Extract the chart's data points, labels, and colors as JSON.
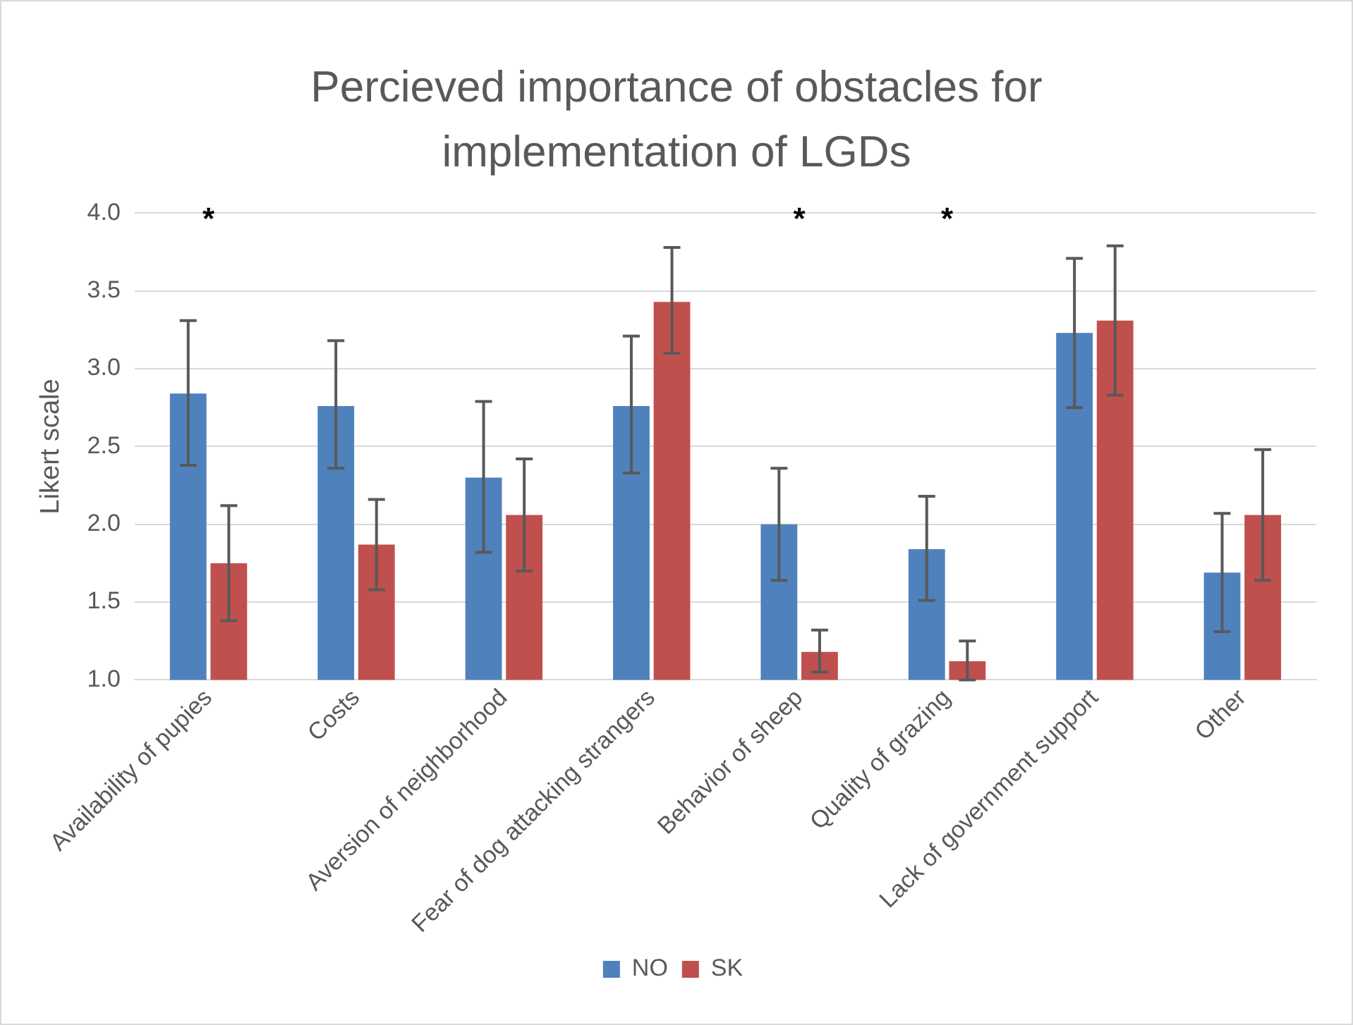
{
  "chart_data": {
    "type": "bar",
    "title": "Percieved importance of obstacles for implementation of LGDs",
    "ylabel": "Likert scale",
    "categories": [
      "Availability of pupies",
      "Costs",
      "Aversion of neighborhood",
      "Fear of dog attacking strangers",
      "Behavior of sheep",
      "Quality of grazing",
      "Lack of government support",
      "Other"
    ],
    "series": [
      {
        "name": "NO",
        "color": "#4f81bd",
        "values": [
          2.84,
          2.76,
          2.3,
          2.76,
          2.0,
          1.84,
          3.23,
          1.69
        ],
        "errors": [
          [
            2.38,
            3.31
          ],
          [
            2.36,
            3.18
          ],
          [
            1.82,
            2.79
          ],
          [
            2.33,
            3.21
          ],
          [
            1.64,
            2.36
          ],
          [
            1.51,
            2.18
          ],
          [
            2.75,
            3.71
          ],
          [
            1.31,
            2.07
          ]
        ]
      },
      {
        "name": "SK",
        "color": "#c0504d",
        "values": [
          1.75,
          1.87,
          2.06,
          3.43,
          1.18,
          1.12,
          3.31,
          2.06
        ],
        "errors": [
          [
            1.38,
            2.12
          ],
          [
            1.58,
            2.16
          ],
          [
            1.7,
            2.42
          ],
          [
            3.1,
            3.78
          ],
          [
            1.05,
            1.32
          ],
          [
            1.0,
            1.25
          ],
          [
            2.83,
            3.79
          ],
          [
            1.64,
            2.48
          ]
        ]
      }
    ],
    "ylim": [
      1,
      4
    ],
    "yticks": [
      {
        "value": 1,
        "label": "1.0"
      },
      {
        "value": 1.5,
        "label": "1.5"
      },
      {
        "value": 2,
        "label": "2.0"
      },
      {
        "value": 2.5,
        "label": "2.5"
      },
      {
        "value": 3,
        "label": "3.0"
      },
      {
        "value": 3.5,
        "label": "3.5"
      },
      {
        "value": 4,
        "label": "4.0"
      }
    ],
    "grid": "y",
    "legend": "bottom",
    "annotations": [
      "*",
      "*",
      "*"
    ]
  }
}
